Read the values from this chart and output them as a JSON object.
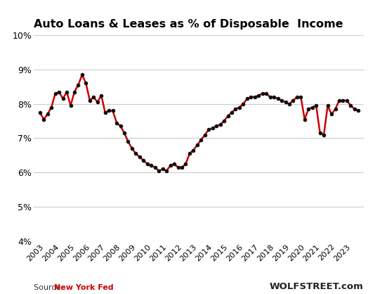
{
  "title": "Auto Loans & Leases as % of Disposable  Income",
  "source_label": "Source: ",
  "source_label_bold": "New York Fed",
  "watermark_text": "WOLFSTREET.com",
  "line_color": "#cc0000",
  "marker_color": "#111111",
  "background_color": "#ffffff",
  "grid_color": "#cccccc",
  "ylim": [
    4,
    10
  ],
  "yticks": [
    4,
    5,
    6,
    7,
    8,
    9,
    10
  ],
  "ytick_labels": [
    "4%",
    "5%",
    "6%",
    "7%",
    "8%",
    "9%",
    "10%"
  ],
  "x_labels": [
    "2003",
    "2004",
    "2005",
    "2006",
    "2007",
    "2008",
    "2009",
    "2010",
    "2011",
    "2012",
    "2013",
    "2014",
    "2015",
    "2016",
    "2017",
    "2018",
    "2019",
    "2020",
    "2021",
    "2022",
    "2023"
  ],
  "data": [
    [
      2003.0,
      7.75
    ],
    [
      2003.25,
      7.55
    ],
    [
      2003.5,
      7.7
    ],
    [
      2003.75,
      7.9
    ],
    [
      2004.0,
      8.3
    ],
    [
      2004.25,
      8.35
    ],
    [
      2004.5,
      8.15
    ],
    [
      2004.75,
      8.35
    ],
    [
      2005.0,
      7.95
    ],
    [
      2005.25,
      8.35
    ],
    [
      2005.5,
      8.55
    ],
    [
      2005.75,
      8.85
    ],
    [
      2006.0,
      8.6
    ],
    [
      2006.25,
      8.1
    ],
    [
      2006.5,
      8.2
    ],
    [
      2006.75,
      8.05
    ],
    [
      2007.0,
      8.25
    ],
    [
      2007.25,
      7.75
    ],
    [
      2007.5,
      7.8
    ],
    [
      2007.75,
      7.8
    ],
    [
      2008.0,
      7.45
    ],
    [
      2008.25,
      7.35
    ],
    [
      2008.5,
      7.15
    ],
    [
      2008.75,
      6.9
    ],
    [
      2009.0,
      6.7
    ],
    [
      2009.25,
      6.55
    ],
    [
      2009.5,
      6.45
    ],
    [
      2009.75,
      6.35
    ],
    [
      2010.0,
      6.25
    ],
    [
      2010.25,
      6.2
    ],
    [
      2010.5,
      6.15
    ],
    [
      2010.75,
      6.05
    ],
    [
      2011.0,
      6.1
    ],
    [
      2011.25,
      6.05
    ],
    [
      2011.5,
      6.2
    ],
    [
      2011.75,
      6.25
    ],
    [
      2012.0,
      6.15
    ],
    [
      2012.25,
      6.15
    ],
    [
      2012.5,
      6.25
    ],
    [
      2012.75,
      6.55
    ],
    [
      2013.0,
      6.65
    ],
    [
      2013.25,
      6.8
    ],
    [
      2013.5,
      6.95
    ],
    [
      2013.75,
      7.1
    ],
    [
      2014.0,
      7.25
    ],
    [
      2014.25,
      7.3
    ],
    [
      2014.5,
      7.35
    ],
    [
      2014.75,
      7.4
    ],
    [
      2015.0,
      7.5
    ],
    [
      2015.25,
      7.65
    ],
    [
      2015.5,
      7.75
    ],
    [
      2015.75,
      7.85
    ],
    [
      2016.0,
      7.9
    ],
    [
      2016.25,
      8.0
    ],
    [
      2016.5,
      8.15
    ],
    [
      2016.75,
      8.2
    ],
    [
      2017.0,
      8.2
    ],
    [
      2017.25,
      8.25
    ],
    [
      2017.5,
      8.3
    ],
    [
      2017.75,
      8.3
    ],
    [
      2018.0,
      8.2
    ],
    [
      2018.25,
      8.2
    ],
    [
      2018.5,
      8.15
    ],
    [
      2018.75,
      8.1
    ],
    [
      2019.0,
      8.05
    ],
    [
      2019.25,
      8.0
    ],
    [
      2019.5,
      8.1
    ],
    [
      2019.75,
      8.2
    ],
    [
      2020.0,
      8.2
    ],
    [
      2020.25,
      7.55
    ],
    [
      2020.5,
      7.85
    ],
    [
      2020.75,
      7.9
    ],
    [
      2021.0,
      7.95
    ],
    [
      2021.25,
      7.15
    ],
    [
      2021.5,
      7.1
    ],
    [
      2021.75,
      7.95
    ],
    [
      2022.0,
      7.7
    ],
    [
      2022.25,
      7.85
    ],
    [
      2022.5,
      8.1
    ],
    [
      2022.75,
      8.1
    ],
    [
      2023.0,
      8.1
    ],
    [
      2023.25,
      7.95
    ],
    [
      2023.5,
      7.85
    ],
    [
      2023.75,
      7.8
    ]
  ]
}
